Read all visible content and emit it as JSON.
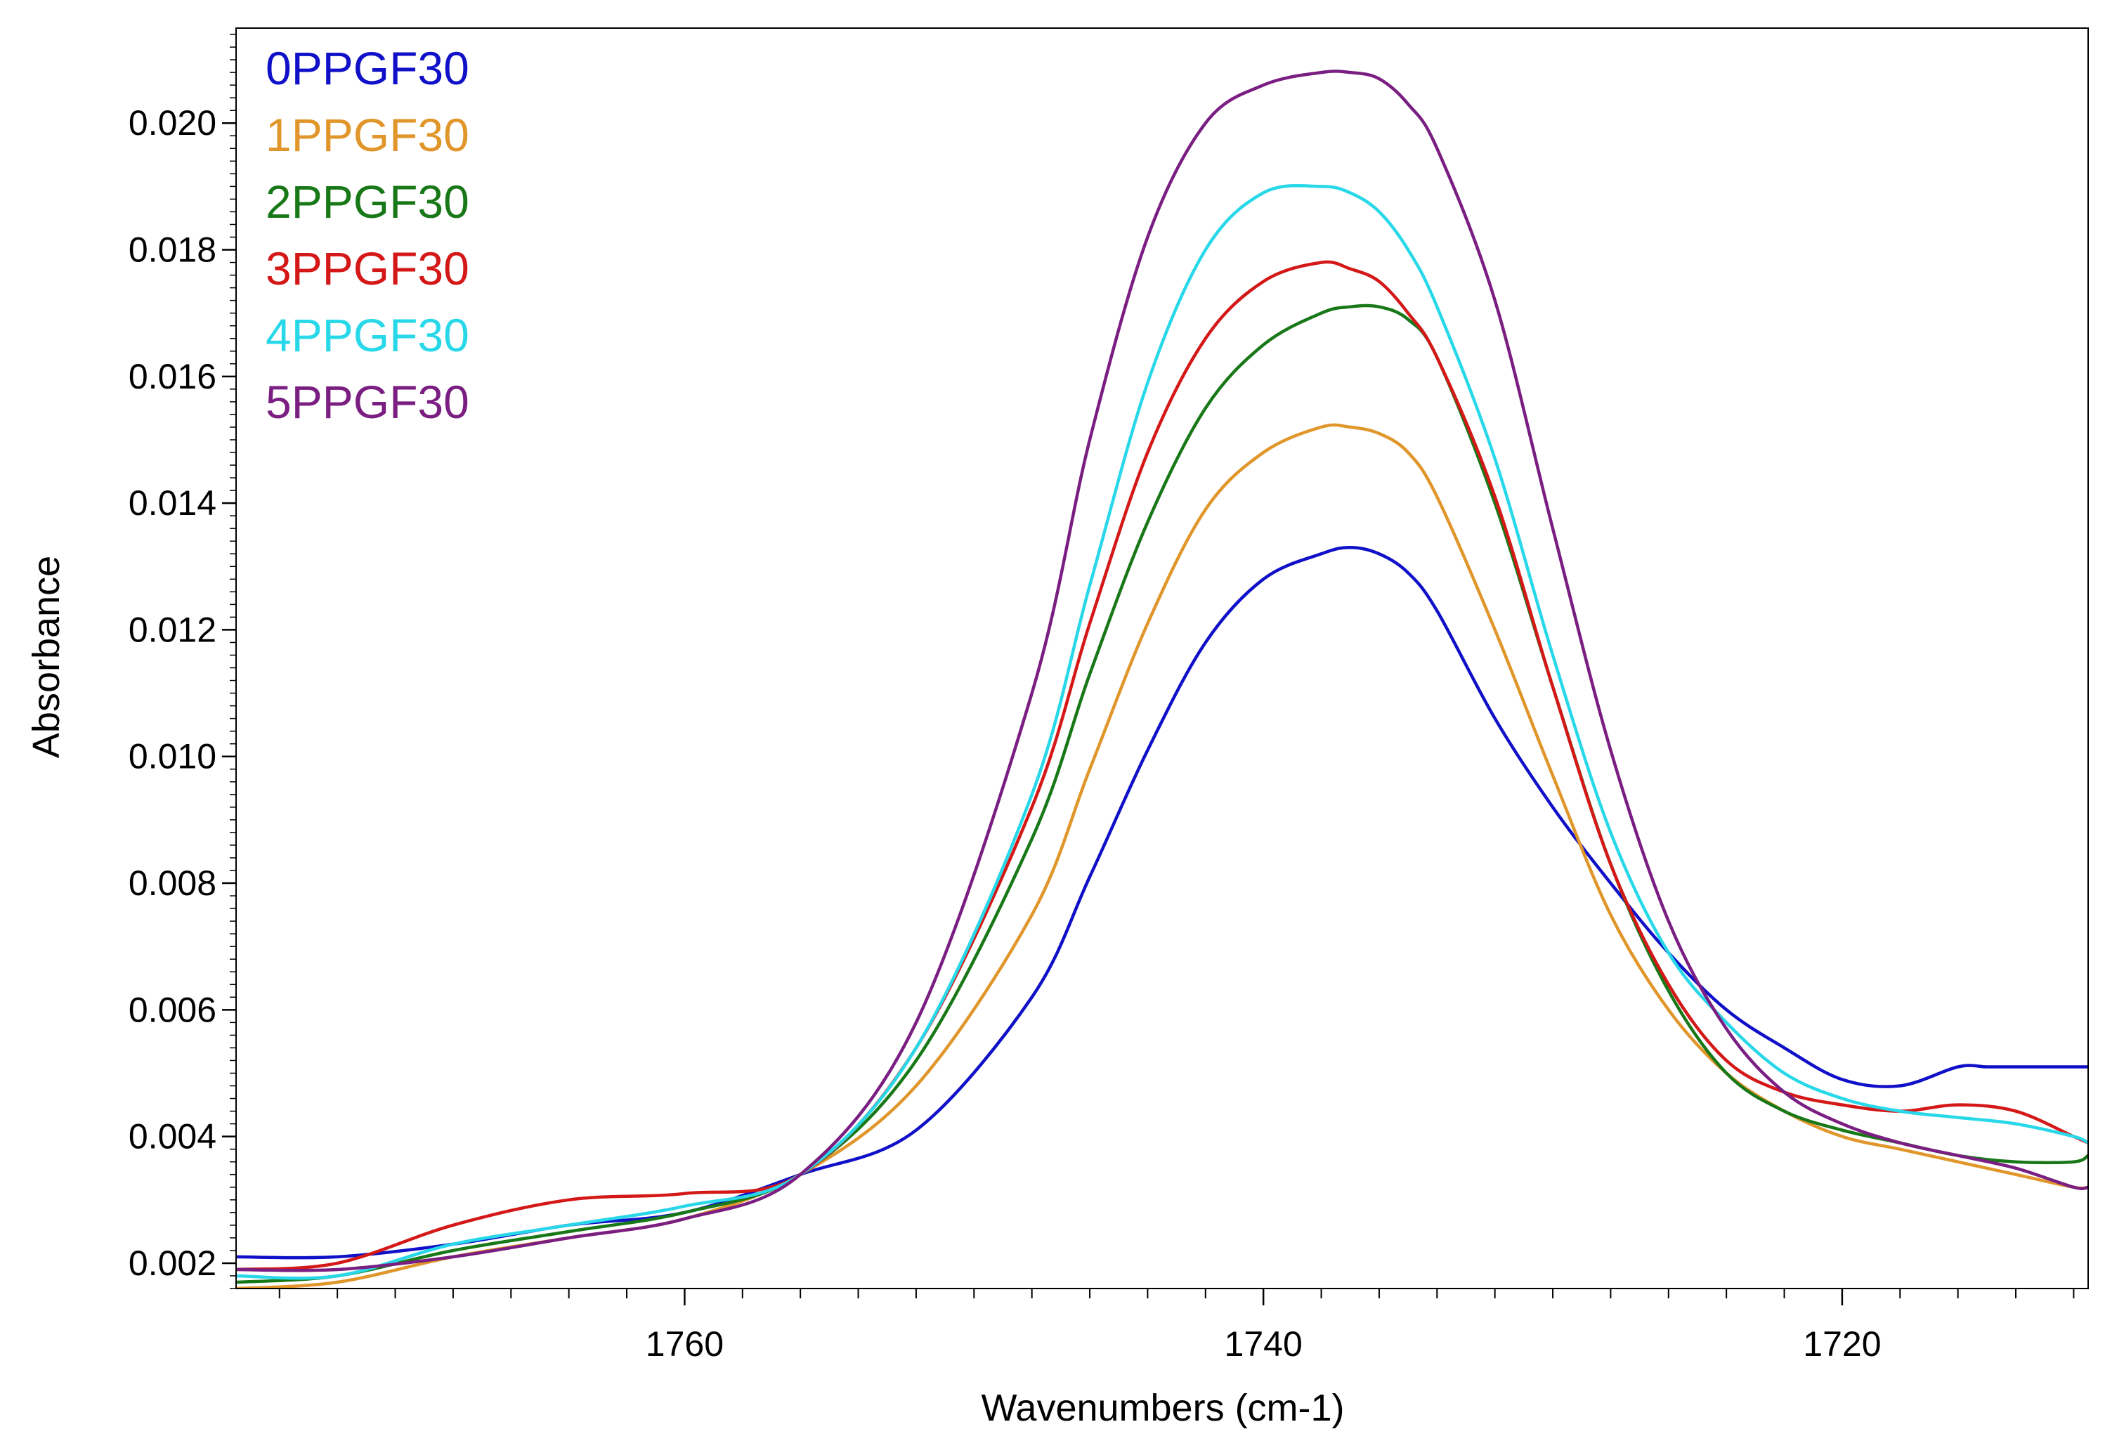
{
  "chart_data": {
    "type": "line",
    "title": "",
    "xlabel": "Wavenumbers (cm-1)",
    "ylabel": "Absorbance",
    "xlim": [
      1775.5,
      1711.5
    ],
    "ylim": [
      0.0016,
      0.0215
    ],
    "x_reversed": true,
    "grid": false,
    "legend_position": "top-left",
    "xticks": [
      {
        "value": 1760,
        "label": "1760"
      },
      {
        "value": 1740,
        "label": "1740"
      },
      {
        "value": 1720,
        "label": "1720"
      }
    ],
    "yticks": [
      {
        "value": 0.002,
        "label": "0.002"
      },
      {
        "value": 0.004,
        "label": "0.004"
      },
      {
        "value": 0.006,
        "label": "0.006"
      },
      {
        "value": 0.008,
        "label": "0.008"
      },
      {
        "value": 0.01,
        "label": "0.010"
      },
      {
        "value": 0.012,
        "label": "0.012"
      },
      {
        "value": 0.014,
        "label": "0.014"
      },
      {
        "value": 0.016,
        "label": "0.016"
      },
      {
        "value": 0.018,
        "label": "0.018"
      },
      {
        "value": 0.02,
        "label": "0.020"
      }
    ],
    "series": [
      {
        "name": "0PPGF30",
        "color": "#1010c8",
        "x": [
          1775.5,
          1772,
          1768,
          1764,
          1760,
          1756,
          1752,
          1748,
          1746,
          1744,
          1742,
          1740,
          1738,
          1737,
          1736,
          1735,
          1734,
          1732,
          1730,
          1728,
          1726,
          1724,
          1722,
          1720,
          1718,
          1716,
          1715,
          1714,
          1712,
          1711.5
        ],
        "y": [
          0.0021,
          0.0021,
          0.0023,
          0.0026,
          0.0028,
          0.0034,
          0.0041,
          0.0062,
          0.0081,
          0.0101,
          0.0118,
          0.0128,
          0.0132,
          0.0133,
          0.0132,
          0.0129,
          0.0123,
          0.0106,
          0.0092,
          0.008,
          0.0069,
          0.006,
          0.0054,
          0.0049,
          0.0048,
          0.0051,
          0.0051,
          0.0051,
          0.0051,
          0.0051
        ]
      },
      {
        "name": "1PPGF30",
        "color": "#e0962a",
        "x": [
          1775.5,
          1772,
          1768,
          1764,
          1760,
          1756,
          1752,
          1748,
          1746,
          1744,
          1742,
          1740,
          1738,
          1737,
          1736,
          1735,
          1734,
          1732,
          1730,
          1728,
          1726,
          1724,
          1722,
          1720,
          1718,
          1716,
          1714,
          1712,
          1711.5
        ],
        "y": [
          0.0016,
          0.0017,
          0.0021,
          0.0024,
          0.0027,
          0.0034,
          0.0048,
          0.0075,
          0.0098,
          0.0121,
          0.0139,
          0.0148,
          0.0152,
          0.0152,
          0.0151,
          0.0148,
          0.0141,
          0.012,
          0.0097,
          0.0075,
          0.006,
          0.005,
          0.0044,
          0.004,
          0.0038,
          0.0036,
          0.0034,
          0.0032,
          0.0032
        ]
      },
      {
        "name": "2PPGF30",
        "color": "#187818",
        "x": [
          1775.5,
          1772,
          1768,
          1764,
          1760,
          1756,
          1752,
          1748,
          1746,
          1744,
          1742,
          1740,
          1738,
          1737,
          1736,
          1735,
          1734,
          1732,
          1730,
          1728,
          1726,
          1724,
          1722,
          1720,
          1718,
          1716,
          1714,
          1712,
          1711.5
        ],
        "y": [
          0.0017,
          0.0018,
          0.0022,
          0.0025,
          0.0028,
          0.0034,
          0.0052,
          0.0087,
          0.0113,
          0.0137,
          0.0155,
          0.0165,
          0.017,
          0.0171,
          0.0171,
          0.0169,
          0.0163,
          0.014,
          0.0111,
          0.0083,
          0.0063,
          0.005,
          0.0044,
          0.0041,
          0.0039,
          0.0037,
          0.0036,
          0.0036,
          0.0037
        ]
      },
      {
        "name": "3PPGF30",
        "color": "#d41818",
        "x": [
          1775.5,
          1772,
          1768,
          1764,
          1760,
          1756,
          1752,
          1748,
          1746,
          1744,
          1742,
          1740,
          1738,
          1737,
          1736,
          1735,
          1734,
          1732,
          1730,
          1728,
          1726,
          1724,
          1722,
          1720,
          1718,
          1716,
          1714,
          1712,
          1711.5
        ],
        "y": [
          0.0019,
          0.002,
          0.0026,
          0.003,
          0.0031,
          0.0034,
          0.0054,
          0.0092,
          0.0121,
          0.0148,
          0.0166,
          0.0175,
          0.0178,
          0.0177,
          0.0175,
          0.017,
          0.0163,
          0.0141,
          0.0111,
          0.0083,
          0.0064,
          0.0052,
          0.0047,
          0.0045,
          0.0044,
          0.0045,
          0.0044,
          0.004,
          0.0039
        ]
      },
      {
        "name": "4PPGF30",
        "color": "#28d8e8",
        "x": [
          1775.5,
          1772,
          1768,
          1764,
          1760,
          1756,
          1752,
          1748,
          1746,
          1744,
          1742,
          1740,
          1738,
          1737,
          1736,
          1735,
          1734,
          1732,
          1730,
          1728,
          1726,
          1724,
          1722,
          1720,
          1718,
          1716,
          1714,
          1712,
          1711.5
        ],
        "y": [
          0.0018,
          0.0018,
          0.0023,
          0.0026,
          0.0029,
          0.0034,
          0.0054,
          0.0094,
          0.0127,
          0.0159,
          0.018,
          0.0189,
          0.019,
          0.0189,
          0.0186,
          0.018,
          0.0171,
          0.0147,
          0.0116,
          0.0088,
          0.0069,
          0.0058,
          0.005,
          0.0046,
          0.0044,
          0.0043,
          0.0042,
          0.004,
          0.0039
        ]
      },
      {
        "name": "5PPGF30",
        "color": "#7a1e82",
        "x": [
          1775.5,
          1772,
          1768,
          1764,
          1760,
          1756,
          1752,
          1748,
          1746,
          1744,
          1742,
          1740,
          1738,
          1737,
          1736,
          1735,
          1734,
          1732,
          1730,
          1728,
          1726,
          1724,
          1722,
          1720,
          1718,
          1716,
          1714,
          1712,
          1711.5
        ],
        "y": [
          0.0019,
          0.0019,
          0.0021,
          0.0024,
          0.0027,
          0.0034,
          0.0058,
          0.011,
          0.015,
          0.0182,
          0.02,
          0.0206,
          0.0208,
          0.0208,
          0.0207,
          0.0203,
          0.0196,
          0.0172,
          0.0136,
          0.0101,
          0.0074,
          0.0057,
          0.0047,
          0.0042,
          0.0039,
          0.0037,
          0.0035,
          0.0032,
          0.0032
        ]
      }
    ]
  }
}
